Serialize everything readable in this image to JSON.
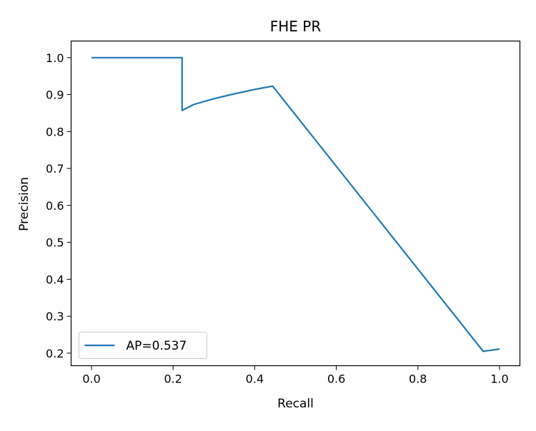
{
  "chart_data": {
    "type": "line",
    "title": "FHE PR",
    "xlabel": "Recall",
    "ylabel": "Precision",
    "xlim": [
      -0.05,
      1.05
    ],
    "ylim": [
      0.166,
      1.045
    ],
    "xticks": [
      0.0,
      0.2,
      0.4,
      0.6,
      0.8,
      1.0
    ],
    "xtick_labels": [
      "0.0",
      "0.2",
      "0.4",
      "0.6",
      "0.8",
      "1.0"
    ],
    "yticks": [
      0.2,
      0.3,
      0.4,
      0.5,
      0.6,
      0.7,
      0.8,
      0.9,
      1.0
    ],
    "ytick_labels": [
      "0.2",
      "0.3",
      "0.4",
      "0.5",
      "0.6",
      "0.7",
      "0.8",
      "0.9",
      "1.0"
    ],
    "grid": false,
    "legend_position": "lower-left",
    "series": [
      {
        "name": "AP=0.537",
        "color": "#1f77b4",
        "x": [
          0.0,
          0.222,
          0.222,
          0.25,
          0.3,
          0.35,
          0.4,
          0.444,
          0.96,
          1.0
        ],
        "y": [
          1.0,
          1.0,
          0.857,
          0.873,
          0.889,
          0.902,
          0.914,
          0.923,
          0.205,
          0.211
        ]
      }
    ]
  }
}
